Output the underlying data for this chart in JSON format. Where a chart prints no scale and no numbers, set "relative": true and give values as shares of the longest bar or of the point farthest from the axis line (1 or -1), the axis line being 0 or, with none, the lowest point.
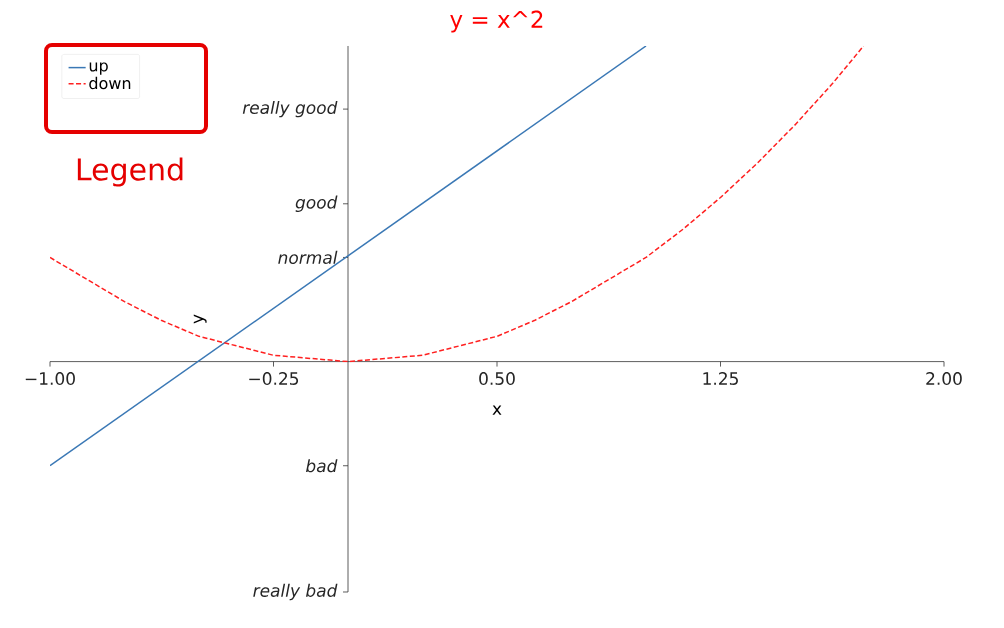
{
  "chart_data": {
    "type": "line",
    "title": "y = x^2",
    "xlabel": "x",
    "ylabel": "y",
    "series": [
      {
        "name": "up",
        "color": "#3a78b5",
        "line_style": "solid",
        "x": [
          -1,
          1
        ],
        "values": [
          -0.33,
          1
        ]
      },
      {
        "name": "down",
        "color": "#ff2020",
        "line_style": "dashed",
        "x": [
          -1,
          -0.875,
          -0.75,
          -0.625,
          -0.5,
          -0.375,
          -0.25,
          -0.125,
          0,
          0.125,
          0.25,
          0.375,
          0.5,
          0.625,
          0.75,
          0.875,
          1,
          1.125,
          1.25,
          1.375,
          1.5,
          1.625,
          1.73
        ],
        "values": [
          0.33,
          0.26,
          0.19,
          0.13,
          0.08,
          0.05,
          0.02,
          0.01,
          0,
          0.01,
          0.02,
          0.05,
          0.08,
          0.13,
          0.19,
          0.26,
          0.33,
          0.42,
          0.52,
          0.63,
          0.75,
          0.88,
          1
        ]
      }
    ],
    "relative": true,
    "xlim": [
      -1,
      2
    ],
    "xticks": [
      {
        "value": -1,
        "label": "−1.00"
      },
      {
        "value": -0.25,
        "label": "−0.25"
      },
      {
        "value": 0.5,
        "label": "0.50"
      },
      {
        "value": 1.25,
        "label": "1.25"
      },
      {
        "value": 2,
        "label": "2.00"
      }
    ],
    "grid": false,
    "legend": "top left",
    "marker": "none",
    "annotations": [
      "Legend"
    ],
    "ref_lines": [
      {
        "axis": "y",
        "value": -0.73,
        "label": "*really bad*"
      },
      {
        "axis": "y",
        "value": -0.33,
        "label": "*bad*"
      },
      {
        "axis": "y",
        "value": 0.33,
        "label": "*normal*"
      },
      {
        "axis": "y",
        "value": 0.5,
        "label": "*good*"
      },
      {
        "axis": "y",
        "value": 0.8,
        "label": "*really good*"
      }
    ]
  }
}
